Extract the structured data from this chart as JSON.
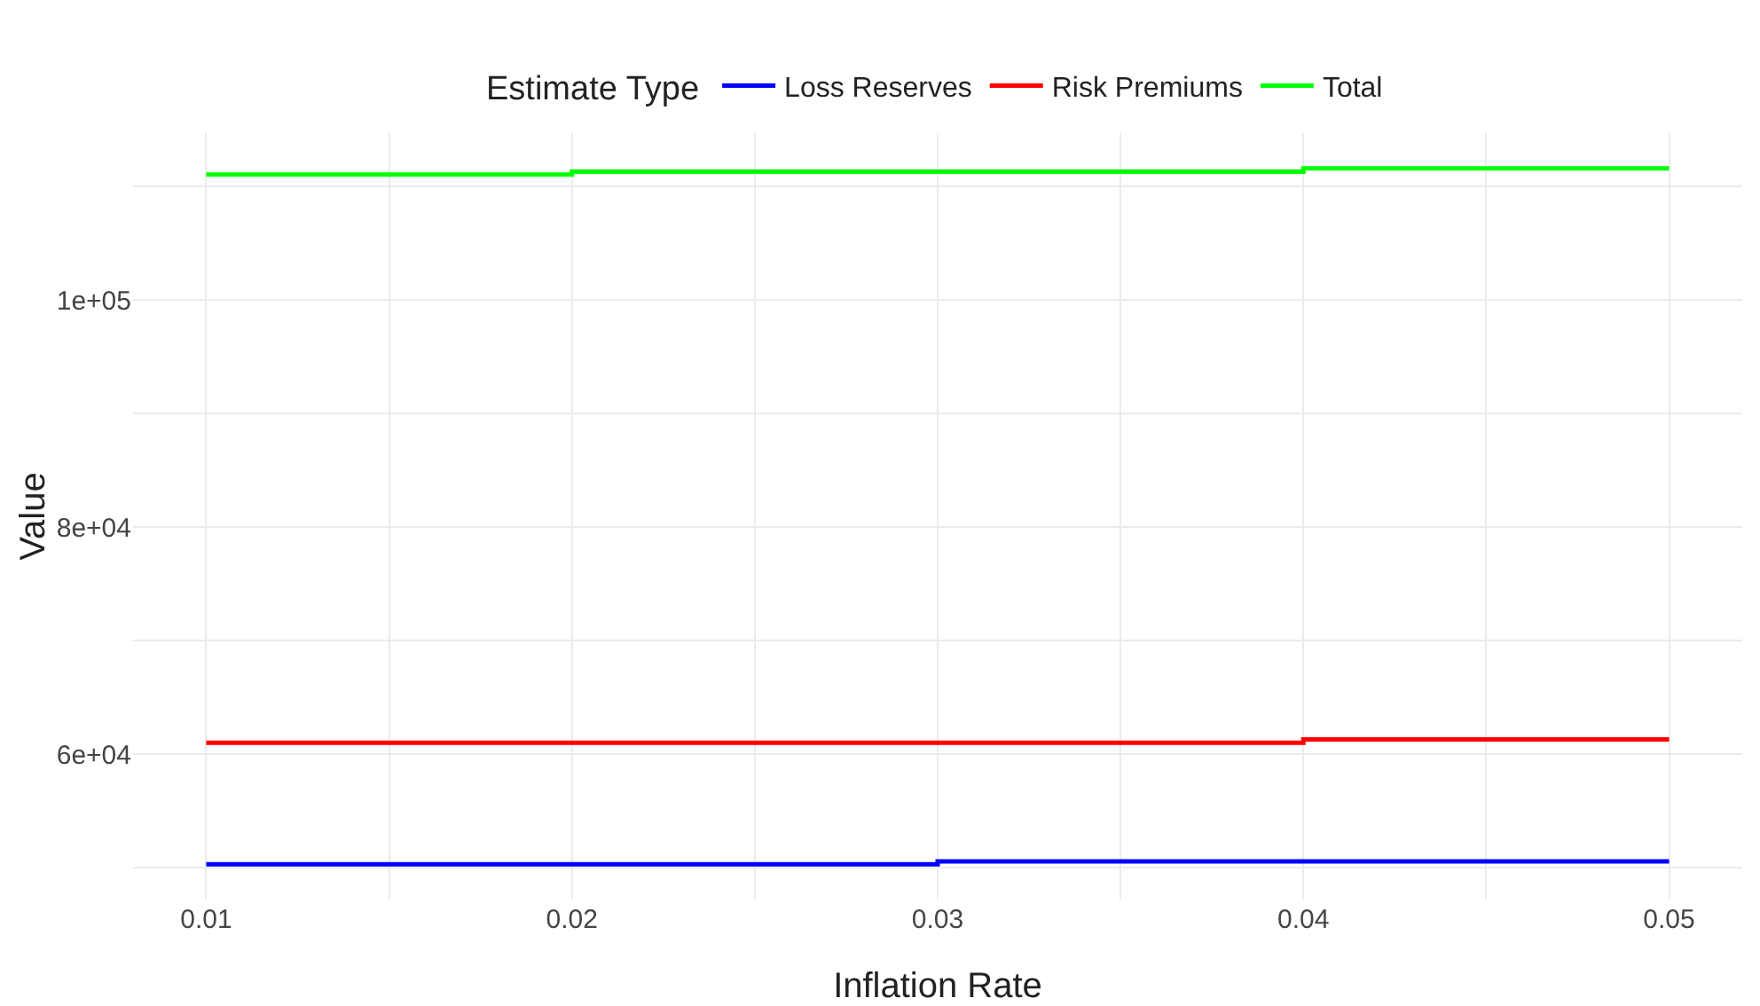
{
  "chart_data": {
    "type": "step",
    "xlabel": "Inflation Rate",
    "ylabel": "Value",
    "legend_title": "Estimate Type",
    "x": [
      0.01,
      0.02,
      0.03,
      0.04,
      0.05
    ],
    "series": [
      {
        "name": "Loss Reserves",
        "color": "#0000ff",
        "values": [
          50300,
          50300,
          50550,
          50550,
          50550
        ]
      },
      {
        "name": "Risk Premiums",
        "color": "#ff0000",
        "values": [
          61000,
          61000,
          61000,
          61300,
          61300
        ]
      },
      {
        "name": "Total",
        "color": "#00ff00",
        "values": [
          111050,
          111300,
          111300,
          111600,
          111600
        ]
      }
    ],
    "xlim": [
      0.008,
      0.052
    ],
    "xticks": [
      0.01,
      {
        "value": 0.015,
        "label": null
      },
      0.02,
      {
        "value": 0.025,
        "label": null
      },
      0.03,
      {
        "value": 0.035,
        "label": null
      },
      0.04,
      {
        "value": 0.045,
        "label": null
      },
      0.05
    ],
    "ylim": [
      47200,
      114700
    ],
    "yticks": [
      {
        "value": 50000,
        "label": null
      },
      {
        "value": 60000,
        "label": "6e+04"
      },
      {
        "value": 70000,
        "label": null
      },
      {
        "value": 80000,
        "label": "8e+04"
      },
      {
        "value": 90000,
        "label": null
      },
      {
        "value": 100000,
        "label": "1e+05"
      },
      {
        "value": 110000,
        "label": null
      }
    ],
    "grid": true,
    "legend": "top",
    "marker": "none",
    "line_style": "solid"
  }
}
